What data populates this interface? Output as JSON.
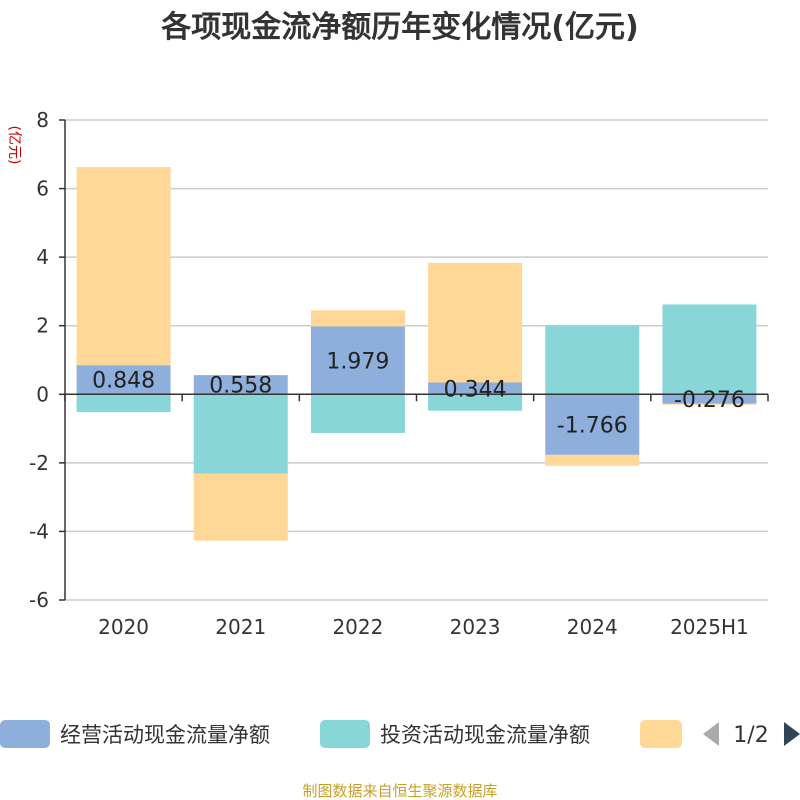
{
  "title": "各项现金流净额历年变化情况(亿元)",
  "y_unit": "(亿元)",
  "source": "制图数据来自恒生聚源数据库",
  "legend": {
    "items": [
      {
        "name": "经营活动现金流量净额",
        "color": "#8eaedb"
      },
      {
        "name": "投资活动现金流量净额",
        "color": "#88d6d8"
      },
      {
        "name": "",
        "color": "#ffd898"
      }
    ],
    "page": "1/2"
  },
  "chart_data": {
    "type": "bar",
    "stacked": true,
    "categories": [
      "2020",
      "2021",
      "2022",
      "2023",
      "2024",
      "2025H1"
    ],
    "series": [
      {
        "name": "经营活动现金流量净额",
        "color": "#8eaedb",
        "values": [
          0.848,
          0.558,
          1.979,
          0.344,
          -1.766,
          -0.276
        ],
        "labels": [
          "0.848",
          "0.558",
          "1.979",
          "0.344",
          "-1.766",
          "-0.276"
        ]
      },
      {
        "name": "投资活动现金流量净额",
        "color": "#88d6d8",
        "values": [
          -0.52,
          -2.32,
          -1.13,
          -0.48,
          2.0,
          2.62
        ]
      },
      {
        "name": "",
        "color": "#ffd898",
        "values": [
          5.78,
          -1.95,
          0.47,
          3.49,
          -0.32,
          -0.03
        ]
      }
    ],
    "ylim": [
      -6,
      8
    ],
    "yticks": [
      -6,
      -4,
      -2,
      0,
      2,
      4,
      6,
      8
    ],
    "grid": true
  }
}
